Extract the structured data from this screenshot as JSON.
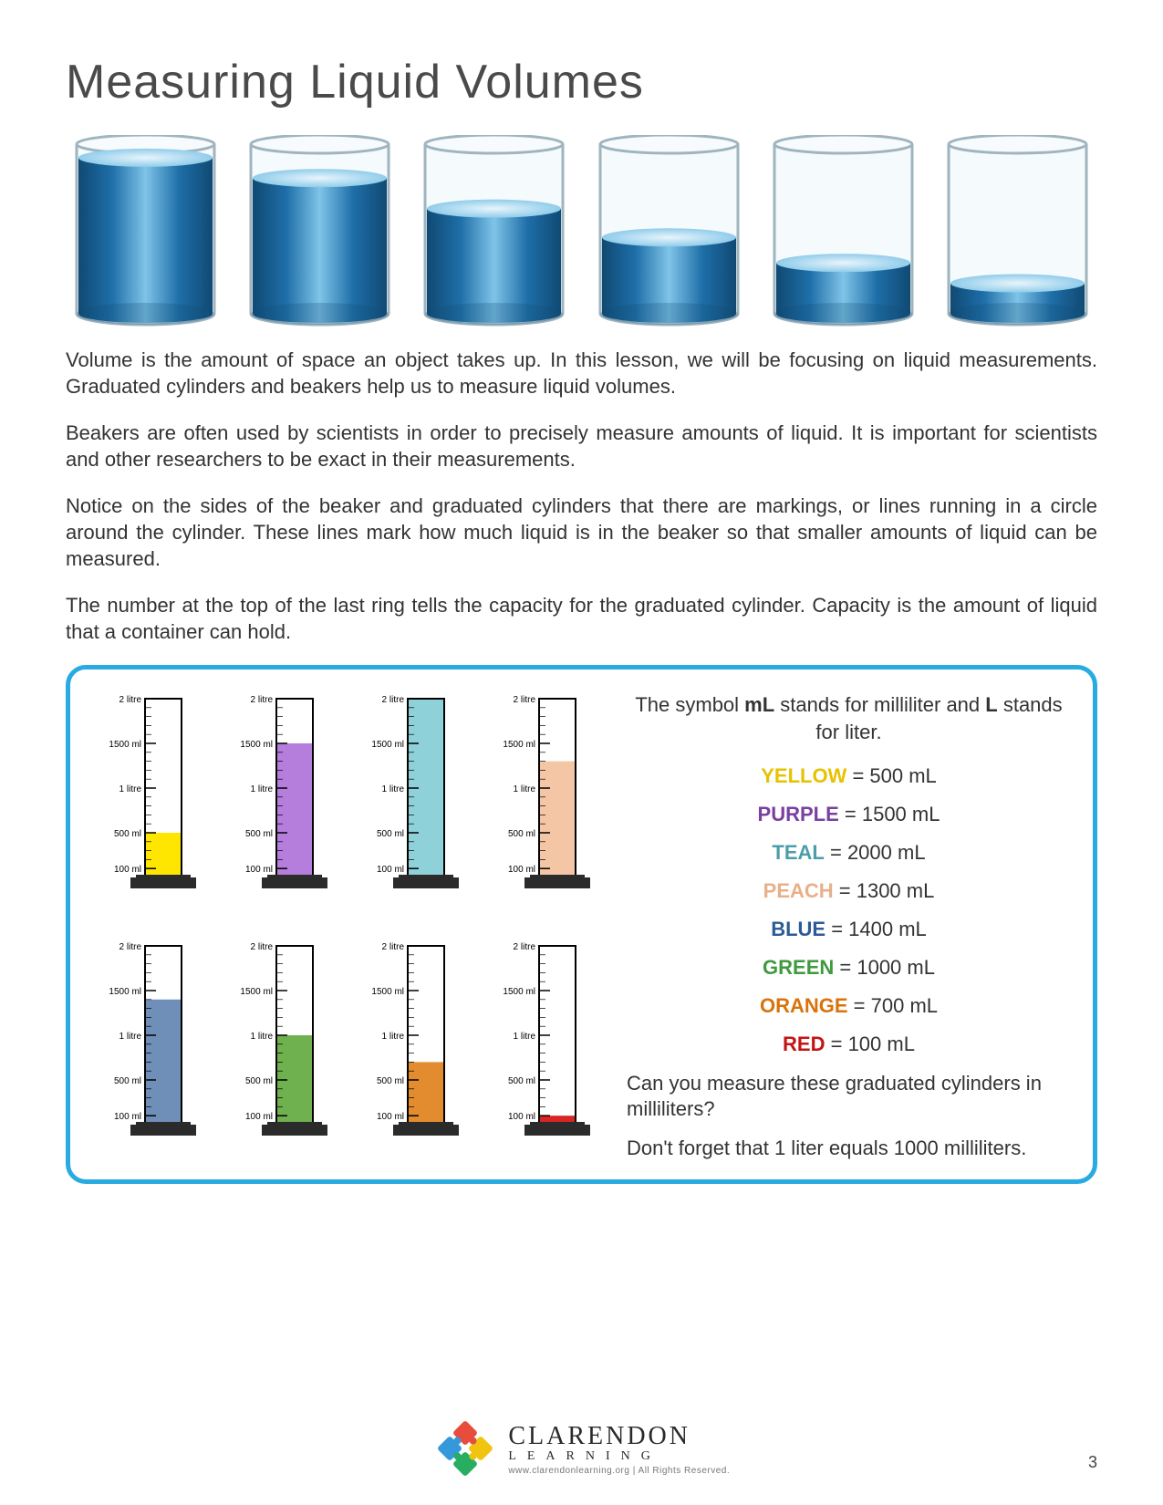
{
  "title": "Measuring Liquid Volumes",
  "paragraphs": {
    "p1": "Volume is the amount of space an object takes up.  In this lesson, we will be focusing on liquid measurements.  Graduated cylinders and beakers help us to measure liquid volumes.",
    "p2": "Beakers are often used by scientists in order to precisely measure amounts of liquid.  It is important for scientists and other researchers to be exact in their measurements.",
    "p3": "Notice on the sides of the beaker and graduated cylinders that there are markings, or lines running in a circle around the cylinder.  These lines mark how much liquid is in the beaker so that smaller amounts of liquid can be measured.",
    "p4": "The number at the top of the last ring tells the capacity for the graduated cylinder.  Capacity is the amount of liquid that a container can hold."
  },
  "beakers": {
    "type": "infographic",
    "count": 6,
    "fill_fractions": [
      0.92,
      0.8,
      0.62,
      0.45,
      0.3,
      0.18
    ],
    "glass_stroke": "#9fb4bf",
    "water_dark": "#104a73",
    "water_mid": "#1e6ea8",
    "water_light": "#7fc4e8",
    "highlight": "#e8f5fb",
    "beaker_w": 175,
    "beaker_h": 210
  },
  "panel": {
    "border_color": "#29abe2",
    "intro_a": "The symbol ",
    "intro_b": "mL",
    "intro_c": " stands for milliliter and ",
    "intro_d": "L",
    "intro_e": " stands for liter.",
    "question": "Can you measure these graduated cylinders in milliliters?",
    "reminder": "Don't forget that 1 liter equals 1000 milliliters."
  },
  "cylinders": {
    "type": "bar",
    "capacity_ml": 2000,
    "tick_labels": [
      "2 litre",
      "1500 ml",
      "1 litre",
      "500 ml",
      "100 ml"
    ],
    "tick_values": [
      2000,
      1500,
      1000,
      500,
      100
    ],
    "glass_stroke": "#000000",
    "base_color": "#2b2b2b",
    "tick_color": "#000000",
    "label_fontsize": 10,
    "items": [
      {
        "name": "YELLOW",
        "value": 500,
        "fill": "#ffe600",
        "label_color": "#e6c200"
      },
      {
        "name": "PURPLE",
        "value": 1500,
        "fill": "#b57edc",
        "label_color": "#7a3fa0"
      },
      {
        "name": "TEAL",
        "value": 2000,
        "fill": "#8fd1d9",
        "label_color": "#4a9ea8"
      },
      {
        "name": "PEACH",
        "value": 1300,
        "fill": "#f4c6a5",
        "label_color": "#e8b089"
      },
      {
        "name": "BLUE",
        "value": 1400,
        "fill": "#6f8fb8",
        "label_color": "#2e5a97"
      },
      {
        "name": "GREEN",
        "value": 1000,
        "fill": "#6fb04f",
        "label_color": "#3f9a3f"
      },
      {
        "name": "ORANGE",
        "value": 700,
        "fill": "#e38b2f",
        "label_color": "#d9730b"
      },
      {
        "name": "RED",
        "value": 100,
        "fill": "#d82424",
        "label_color": "#c41414"
      }
    ],
    "legend_suffix": " mL"
  },
  "footer": {
    "brand_top": "CLARENDON",
    "brand_bot": "LEARNING",
    "url": "www.clarendonlearning.org  |  All Rights Reserved.",
    "logo_colors": {
      "tl": "#e74c3c",
      "tr": "#f1c40f",
      "bl": "#3498db",
      "br": "#27ae60"
    }
  },
  "page_number": "3"
}
